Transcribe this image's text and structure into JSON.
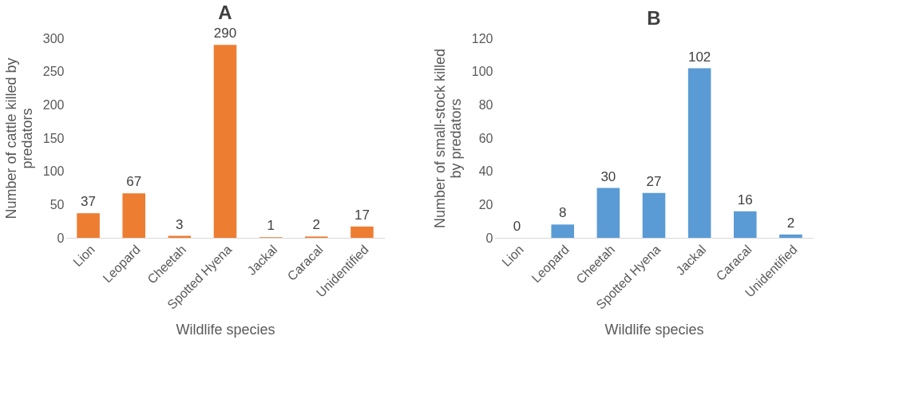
{
  "chart_data": [
    {
      "type": "bar",
      "title": "A",
      "xlabel": "Wildlife species",
      "ylabel": "Number of cattle killed by predators",
      "categories": [
        "Lion",
        "Leopard",
        "Cheetah",
        "Spotted Hyena",
        "Jackal",
        "Caracal",
        "Unidentified"
      ],
      "values": [
        37,
        67,
        3,
        290,
        1,
        2,
        17
      ],
      "color": "#ed7d31",
      "ylim": [
        0,
        300
      ],
      "yticks": [
        0,
        50,
        100,
        150,
        200,
        250,
        300
      ],
      "grid": false,
      "data_labels": true
    },
    {
      "type": "bar",
      "title": "B",
      "xlabel": "Wildlife species",
      "ylabel": "Number of small-stock killed by predators",
      "categories": [
        "Lion",
        "Leopard",
        "Cheetah",
        "Spotted Hyena",
        "Jackal",
        "Caracal",
        "Unidentified"
      ],
      "values": [
        0,
        8,
        30,
        27,
        102,
        16,
        2
      ],
      "color": "#5b9bd5",
      "ylim": [
        0,
        120
      ],
      "yticks": [
        0,
        20,
        40,
        60,
        80,
        100,
        120
      ],
      "grid": false,
      "data_labels": true
    }
  ]
}
